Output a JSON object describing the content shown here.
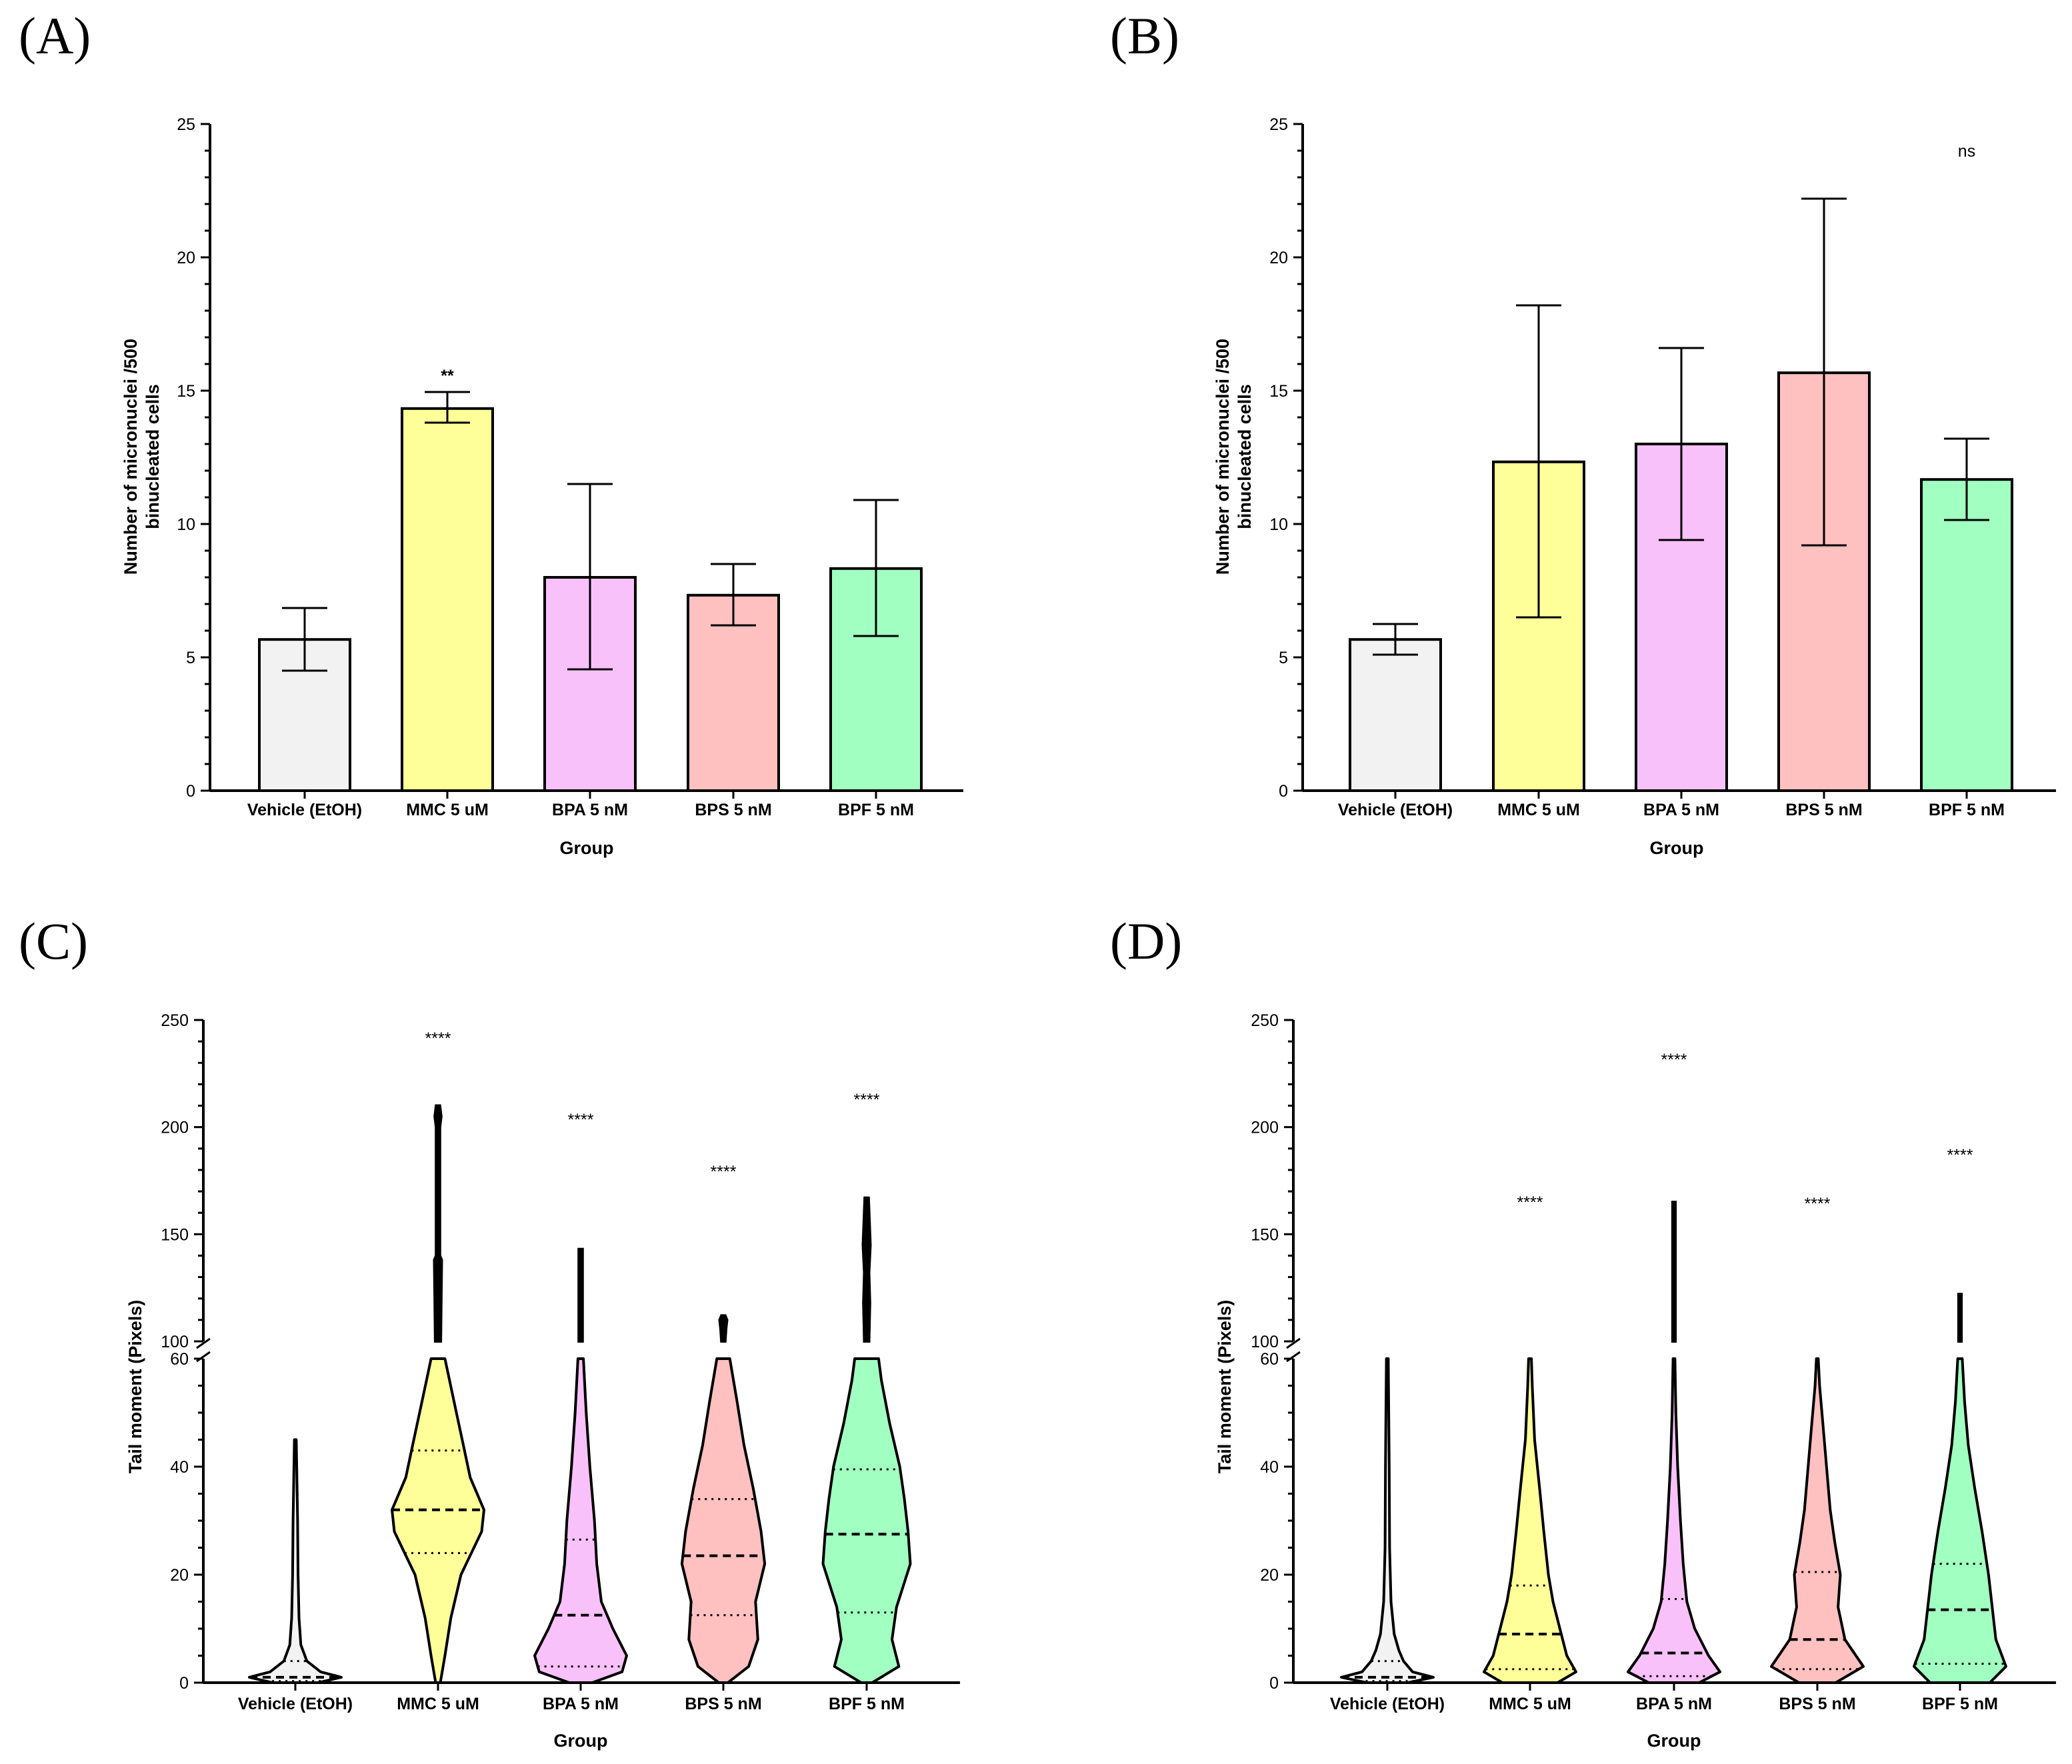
{
  "figure": {
    "panels": [
      "(A)",
      "(B)",
      "(C)",
      "(D)"
    ]
  },
  "colors": {
    "vehicle": "#f2f2f2",
    "mmc": "#ffff99",
    "bpa": "#f9c1f9",
    "bps": "#ffc0c0",
    "bpf": "#a2ffc2"
  },
  "chart_data": [
    {
      "panel": "(A)",
      "type": "bar",
      "categories": [
        "Vehicle (EtOH)",
        "MMC 5 uM",
        "BPA 5 nM",
        "BPS 5 nM",
        "BPF 5 nM"
      ],
      "values": [
        5.67,
        14.33,
        8.0,
        7.33,
        8.33
      ],
      "error_low": [
        4.5,
        13.8,
        4.55,
        6.2,
        5.8
      ],
      "error_high": [
        6.85,
        14.95,
        11.5,
        8.5,
        10.9
      ],
      "annotations": [
        "",
        "**",
        "",
        "",
        ""
      ],
      "xlabel": "Group",
      "ylabel": [
        "Number of micronuclei /500",
        "binucleated cells"
      ],
      "ylim": [
        0,
        25
      ],
      "yticks": [
        0,
        5,
        10,
        15,
        20,
        25
      ],
      "ytick_labels": [
        "0",
        "5",
        "10",
        "15",
        "20",
        "25"
      ],
      "top_annotation": ""
    },
    {
      "panel": "(B)",
      "type": "bar",
      "categories": [
        "Vehicle (EtOH)",
        "MMC 5 uM",
        "BPA 5 nM",
        "BPS 5 nM",
        "BPF 5 nM"
      ],
      "values": [
        5.67,
        12.33,
        13.0,
        15.67,
        11.67
      ],
      "error_low": [
        5.1,
        6.5,
        9.4,
        9.2,
        10.15
      ],
      "error_high": [
        6.25,
        18.2,
        16.6,
        22.2,
        13.2
      ],
      "annotations": [
        "",
        "",
        "",
        "",
        ""
      ],
      "xlabel": "Group",
      "ylabel": [
        "Number of micronuclei /500",
        "binucleated cells"
      ],
      "ylim": [
        0,
        25
      ],
      "yticks": [
        0,
        5,
        10,
        15,
        20,
        25
      ],
      "ytick_labels": [
        "0",
        "5",
        "10",
        "15",
        "20",
        "25"
      ],
      "top_annotation": "ns"
    },
    {
      "panel": "(C)",
      "type": "violin",
      "categories": [
        "Vehicle (EtOH)",
        "MMC 5 uM",
        "BPA 5 nM",
        "BPS 5 nM",
        "BPF 5 nM"
      ],
      "xlabel": "Group",
      "ylabel": "Tail moment (Pixels)",
      "y_segments": [
        [
          0,
          60
        ],
        [
          100,
          250
        ]
      ],
      "yticks": [
        0,
        20,
        40,
        60,
        100,
        150,
        200,
        250
      ],
      "ytick_labels": [
        "0",
        "20",
        "40",
        "60",
        "100",
        "150",
        "200",
        "250"
      ],
      "groups": [
        {
          "max": 45,
          "median": 1,
          "q1": 0.3,
          "q3": 4,
          "annotation": "",
          "profile": [
            [
              0,
              0.5
            ],
            [
              1,
              1.0
            ],
            [
              2,
              0.55
            ],
            [
              4,
              0.25
            ],
            [
              7,
              0.12
            ],
            [
              12,
              0.08
            ],
            [
              20,
              0.06
            ],
            [
              30,
              0.05
            ],
            [
              45,
              0.02
            ]
          ]
        },
        {
          "max": 210,
          "median": 32,
          "q1": 24,
          "q3": 43,
          "annotation": "****",
          "profile": [
            [
              0,
              0.05
            ],
            [
              5,
              0.15
            ],
            [
              12,
              0.28
            ],
            [
              20,
              0.5
            ],
            [
              28,
              0.95
            ],
            [
              32,
              1.0
            ],
            [
              38,
              0.7
            ],
            [
              44,
              0.55
            ],
            [
              50,
              0.4
            ],
            [
              56,
              0.25
            ],
            [
              60,
              0.15
            ]
          ],
          "upper_tail": [
            [
              100,
              0.06
            ],
            [
              138,
              0.08
            ],
            [
              140,
              0.04
            ],
            [
              200,
              0.04
            ],
            [
              205,
              0.07
            ],
            [
              210,
              0.04
            ]
          ]
        },
        {
          "max": 143,
          "median": 12.5,
          "q1": 3,
          "q3": 26.5,
          "annotation": "****",
          "profile": [
            [
              0,
              0.25
            ],
            [
              2,
              0.9
            ],
            [
              5,
              1.0
            ],
            [
              10,
              0.7
            ],
            [
              15,
              0.45
            ],
            [
              22,
              0.35
            ],
            [
              30,
              0.3
            ],
            [
              40,
              0.2
            ],
            [
              50,
              0.12
            ],
            [
              60,
              0.06
            ]
          ],
          "upper_tail": [
            [
              100,
              0.04
            ],
            [
              143,
              0.04
            ]
          ]
        },
        {
          "max": 112,
          "median": 23.5,
          "q1": 12.5,
          "q3": 34,
          "annotation": "****",
          "profile": [
            [
              0,
              0.1
            ],
            [
              3,
              0.55
            ],
            [
              8,
              0.75
            ],
            [
              15,
              0.7
            ],
            [
              22,
              0.9
            ],
            [
              28,
              0.82
            ],
            [
              36,
              0.65
            ],
            [
              44,
              0.45
            ],
            [
              52,
              0.3
            ],
            [
              60,
              0.14
            ]
          ],
          "upper_tail": [
            [
              100,
              0.04
            ],
            [
              106,
              0.06
            ],
            [
              110,
              0.08
            ],
            [
              112,
              0.04
            ]
          ]
        },
        {
          "max": 167,
          "median": 27.5,
          "q1": 13,
          "q3": 39.5,
          "annotation": "****",
          "profile": [
            [
              0,
              0.12
            ],
            [
              3,
              0.7
            ],
            [
              8,
              0.55
            ],
            [
              14,
              0.65
            ],
            [
              22,
              0.95
            ],
            [
              28,
              0.9
            ],
            [
              34,
              0.82
            ],
            [
              40,
              0.72
            ],
            [
              48,
              0.5
            ],
            [
              56,
              0.32
            ],
            [
              60,
              0.26
            ]
          ],
          "upper_tail": [
            [
              100,
              0.05
            ],
            [
              118,
              0.07
            ],
            [
              132,
              0.05
            ],
            [
              145,
              0.08
            ],
            [
              167,
              0.04
            ]
          ]
        }
      ]
    },
    {
      "panel": "(D)",
      "type": "violin",
      "categories": [
        "Vehicle (EtOH)",
        "MMC 5 uM",
        "BPA 5 nM",
        "BPS 5 nM",
        "BPF 5 nM"
      ],
      "xlabel": "Group",
      "ylabel": "Tail moment (Pixels)",
      "y_segments": [
        [
          0,
          60
        ],
        [
          100,
          250
        ]
      ],
      "yticks": [
        0,
        20,
        40,
        60,
        100,
        150,
        200,
        250
      ],
      "ytick_labels": [
        "0",
        "20",
        "40",
        "60",
        "100",
        "150",
        "200",
        "250"
      ],
      "groups": [
        {
          "max": 60,
          "median": 1,
          "q1": 0.3,
          "q3": 4,
          "annotation": "",
          "profile": [
            [
              0,
              0.45
            ],
            [
              1,
              1.0
            ],
            [
              2,
              0.55
            ],
            [
              4,
              0.35
            ],
            [
              6,
              0.25
            ],
            [
              9,
              0.15
            ],
            [
              15,
              0.08
            ],
            [
              25,
              0.05
            ],
            [
              40,
              0.04
            ],
            [
              60,
              0.02
            ]
          ]
        },
        {
          "max": 60,
          "median": 9,
          "q1": 2.5,
          "q3": 18,
          "annotation": "****",
          "profile": [
            [
              0,
              0.6
            ],
            [
              2,
              1.0
            ],
            [
              5,
              0.8
            ],
            [
              10,
              0.65
            ],
            [
              15,
              0.5
            ],
            [
              20,
              0.4
            ],
            [
              28,
              0.3
            ],
            [
              35,
              0.22
            ],
            [
              45,
              0.1
            ],
            [
              55,
              0.05
            ],
            [
              60,
              0.03
            ]
          ]
        },
        {
          "max": 165,
          "median": 5.5,
          "q1": 1.2,
          "q3": 15.5,
          "annotation": "****",
          "profile": [
            [
              0,
              0.55
            ],
            [
              2,
              1.0
            ],
            [
              5,
              0.75
            ],
            [
              10,
              0.45
            ],
            [
              15,
              0.28
            ],
            [
              22,
              0.2
            ],
            [
              30,
              0.14
            ],
            [
              40,
              0.08
            ],
            [
              50,
              0.04
            ],
            [
              60,
              0.02
            ]
          ],
          "upper_tail": [
            [
              100,
              0.03
            ],
            [
              165,
              0.03
            ]
          ]
        },
        {
          "max": 60,
          "median": 8,
          "q1": 2.5,
          "q3": 20.5,
          "annotation": "****",
          "profile": [
            [
              0,
              0.4
            ],
            [
              3,
              1.0
            ],
            [
              8,
              0.6
            ],
            [
              14,
              0.45
            ],
            [
              20,
              0.5
            ],
            [
              26,
              0.38
            ],
            [
              32,
              0.28
            ],
            [
              40,
              0.2
            ],
            [
              48,
              0.12
            ],
            [
              55,
              0.05
            ],
            [
              60,
              0.02
            ]
          ]
        },
        {
          "max": 122,
          "median": 13.5,
          "q1": 3.5,
          "q3": 22,
          "annotation": "****",
          "profile": [
            [
              0,
              0.65
            ],
            [
              3,
              1.0
            ],
            [
              8,
              0.78
            ],
            [
              14,
              0.7
            ],
            [
              20,
              0.62
            ],
            [
              28,
              0.48
            ],
            [
              36,
              0.32
            ],
            [
              44,
              0.18
            ],
            [
              52,
              0.1
            ],
            [
              60,
              0.05
            ]
          ],
          "upper_tail": [
            [
              100,
              0.03
            ],
            [
              122,
              0.03
            ]
          ]
        }
      ]
    }
  ]
}
